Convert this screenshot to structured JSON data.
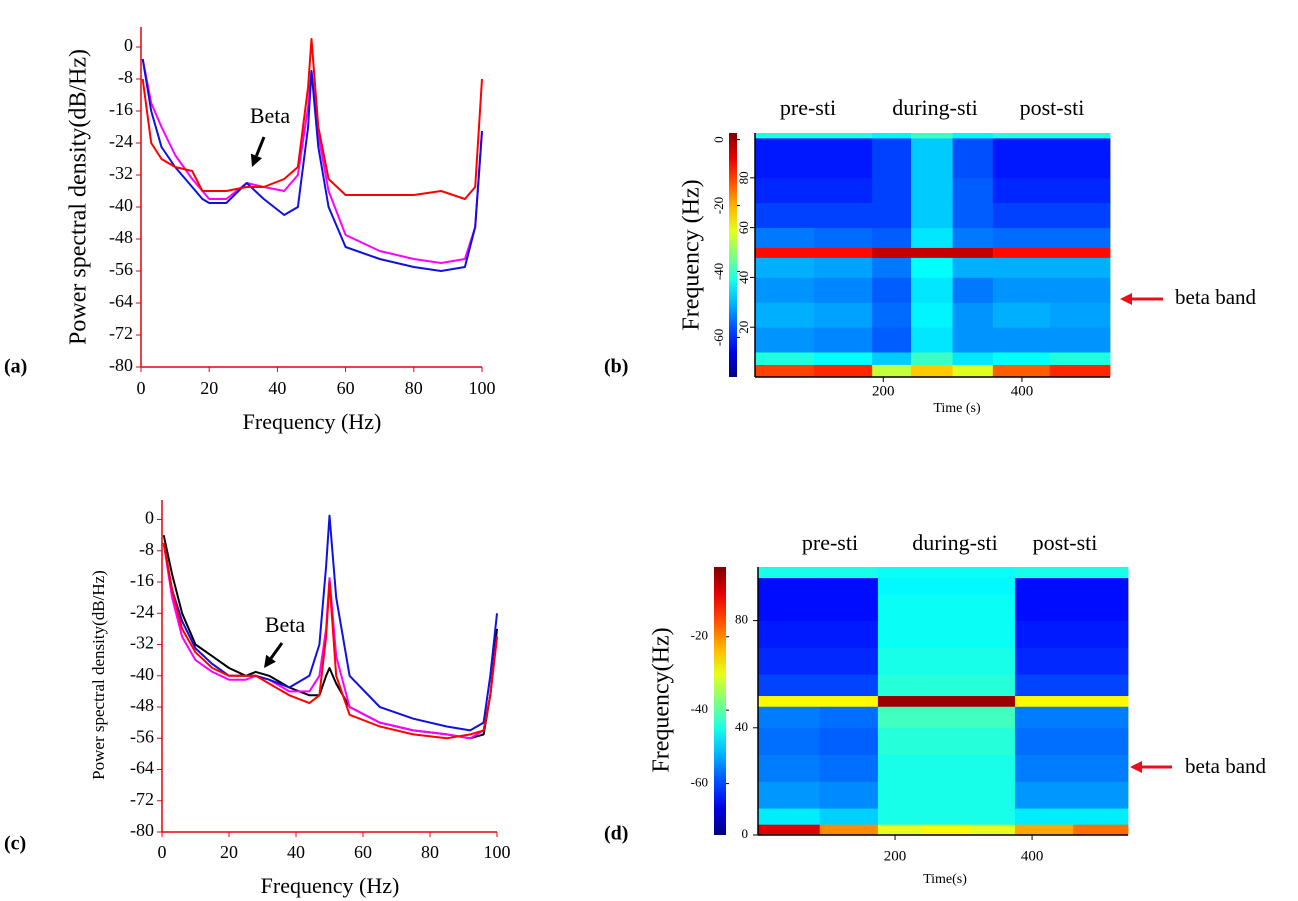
{
  "chart_data": [
    {
      "type": "line",
      "panel_label": "(a)",
      "xlabel": "Frequency (Hz)",
      "ylabel": "Power spectral density(dB/Hz)",
      "annotation": "Beta",
      "axis_color": "#e8000b",
      "xlim": [
        0,
        100
      ],
      "ylim": [
        -80,
        5
      ],
      "xticks": [
        0,
        20,
        40,
        60,
        80,
        100
      ],
      "yticks": [
        0,
        -8,
        -16,
        -24,
        -32,
        -40,
        -48,
        -56,
        -64,
        -72,
        -80
      ],
      "x": [
        0.5,
        3,
        6,
        10,
        15,
        18,
        20,
        25,
        31,
        36,
        42,
        46,
        49,
        50,
        52,
        55,
        60,
        70,
        80,
        88,
        95,
        98,
        100
      ],
      "series": [
        {
          "color": "#ff00ff",
          "values": [
            -3,
            -14,
            -20,
            -27,
            -33,
            -36,
            -38,
            -38,
            -34,
            -35,
            -36,
            -32,
            -15,
            -6,
            -22,
            -36,
            -47,
            -51,
            -53,
            -54,
            -53,
            -45,
            -21
          ]
        },
        {
          "color": "#1010e0",
          "values": [
            -3,
            -16,
            -25,
            -30,
            -35,
            -38,
            -39,
            -39,
            -34,
            -38,
            -42,
            -40,
            -20,
            -6,
            -25,
            -40,
            -50,
            -53,
            -55,
            -56,
            -55,
            -45,
            -21
          ]
        },
        {
          "color": "#ff0000",
          "values": [
            -8,
            -24,
            -28,
            -30,
            -31,
            -36,
            -36,
            -36,
            -35,
            -35,
            -33,
            -30,
            -10,
            2,
            -20,
            -33,
            -37,
            -37,
            -37,
            -36,
            -38,
            -35,
            -8
          ]
        }
      ]
    },
    {
      "type": "heatmap",
      "panel_label": "(b)",
      "xlabel": "Time (s)",
      "ylabel": "Frequency (Hz)",
      "annotation": "beta band",
      "segments": [
        "pre-sti",
        "during-sti",
        "post-sti"
      ],
      "colormap": "jet",
      "xlim": [
        15,
        527
      ],
      "ylim": [
        0,
        98
      ],
      "xticks": [
        200,
        400
      ],
      "yticks": [
        20,
        40,
        60,
        80
      ],
      "zlim": [
        -72,
        2
      ],
      "zticks": [
        0,
        -20,
        -40,
        -60
      ],
      "x": [
        15,
        100,
        184,
        240,
        300,
        358,
        440,
        527
      ],
      "y": [
        0,
        5,
        10,
        20,
        30,
        40,
        48,
        52,
        60,
        70,
        80,
        90,
        96,
        98
      ],
      "z": [
        [
          -12,
          -10,
          -30,
          -22,
          -28,
          -14,
          -10
        ],
        [
          -42,
          -44,
          -48,
          -40,
          -46,
          -44,
          -42
        ],
        [
          -52,
          -53,
          -56,
          -46,
          -52,
          -52,
          -52
        ],
        [
          -50,
          -51,
          -55,
          -45,
          -52,
          -50,
          -51
        ],
        [
          -52,
          -53,
          -56,
          -46,
          -54,
          -52,
          -52
        ],
        [
          -50,
          -51,
          -54,
          -44,
          -50,
          -50,
          -50
        ],
        [
          -8,
          -8,
          -3,
          -3,
          -3,
          -8,
          -8
        ],
        [
          -54,
          -55,
          -56,
          -46,
          -54,
          -55,
          -55
        ],
        [
          -58,
          -58,
          -58,
          -48,
          -56,
          -58,
          -58
        ],
        [
          -60,
          -60,
          -58,
          -48,
          -56,
          -60,
          -60
        ],
        [
          -61,
          -61,
          -58,
          -48,
          -57,
          -61,
          -61
        ],
        [
          -61,
          -61,
          -58,
          -48,
          -57,
          -61,
          -61
        ],
        [
          -42,
          -42,
          -45,
          -40,
          -45,
          -42,
          -42
        ]
      ]
    },
    {
      "type": "line",
      "panel_label": "(c)",
      "xlabel": "Frequency (Hz)",
      "ylabel": "Power spectral density(dB/Hz)",
      "annotation": "Beta",
      "axis_color": "#e8000b",
      "xlim": [
        0,
        100
      ],
      "ylim": [
        -80,
        5
      ],
      "xticks": [
        0,
        20,
        40,
        60,
        80,
        100
      ],
      "yticks": [
        0,
        -8,
        -16,
        -24,
        -32,
        -40,
        -48,
        -56,
        -64,
        -72,
        -80
      ],
      "x": [
        0.5,
        3,
        6,
        10,
        15,
        20,
        25,
        28,
        32,
        38,
        44,
        47,
        49,
        50,
        52,
        56,
        65,
        75,
        85,
        92,
        96,
        98,
        100
      ],
      "series": [
        {
          "color": "#000000",
          "values": [
            -4,
            -14,
            -24,
            -32,
            -35,
            -38,
            -40,
            -39,
            -40,
            -43,
            -45,
            -45,
            -40,
            -38,
            -42,
            -48,
            -52,
            -54,
            -55,
            -56,
            -55,
            -45,
            -28
          ]
        },
        {
          "color": "#ff00ff",
          "values": [
            -6,
            -20,
            -30,
            -36,
            -39,
            -41,
            -41,
            -40,
            -41,
            -44,
            -44,
            -40,
            -28,
            -15,
            -35,
            -48,
            -52,
            -54,
            -55,
            -56,
            -54,
            -45,
            -30
          ]
        },
        {
          "color": "#1010e0",
          "values": [
            -6,
            -18,
            -26,
            -33,
            -37,
            -40,
            -40,
            -40,
            -41,
            -43,
            -40,
            -32,
            -12,
            1,
            -20,
            -40,
            -48,
            -51,
            -53,
            -54,
            -52,
            -40,
            -24
          ]
        },
        {
          "color": "#ff0000",
          "values": [
            -6,
            -18,
            -28,
            -34,
            -38,
            -40,
            -40,
            -40,
            -42,
            -45,
            -47,
            -45,
            -30,
            -16,
            -40,
            -50,
            -53,
            -55,
            -56,
            -55,
            -54,
            -45,
            -30
          ]
        }
      ]
    },
    {
      "type": "heatmap",
      "panel_label": "(d)",
      "xlabel": "Time(s)",
      "ylabel": "Frequency(Hz)",
      "annotation": "beta band",
      "segments": [
        "pre-sti",
        "during-sti",
        "post-sti"
      ],
      "colormap": "jet",
      "xlim": [
        0,
        540
      ],
      "ylim": [
        0,
        100
      ],
      "xticks": [
        200,
        400
      ],
      "yticks": [
        0,
        40,
        80
      ],
      "zlim": [
        -74,
        -1
      ],
      "zticks": [
        -20,
        -40,
        -60
      ],
      "x": [
        0,
        90,
        175,
        240,
        310,
        375,
        460,
        540
      ],
      "y": [
        0,
        4,
        10,
        20,
        30,
        40,
        48,
        52,
        60,
        70,
        80,
        90,
        96,
        100
      ],
      "z": [
        [
          -8,
          -20,
          -30,
          -28,
          -30,
          -22,
          -18
        ],
        [
          -48,
          -50,
          -45,
          -45,
          -45,
          -48,
          -48
        ],
        [
          -54,
          -55,
          -45,
          -45,
          -45,
          -54,
          -54
        ],
        [
          -56,
          -57,
          -45,
          -45,
          -45,
          -56,
          -56
        ],
        [
          -57,
          -58,
          -44,
          -44,
          -44,
          -57,
          -57
        ],
        [
          -56,
          -57,
          -42,
          -42,
          -42,
          -56,
          -56
        ],
        [
          -28,
          -28,
          -3,
          -3,
          -3,
          -28,
          -28
        ],
        [
          -60,
          -60,
          -44,
          -44,
          -44,
          -60,
          -60
        ],
        [
          -62,
          -62,
          -45,
          -45,
          -45,
          -62,
          -62
        ],
        [
          -63,
          -63,
          -46,
          -46,
          -46,
          -63,
          -63
        ],
        [
          -64,
          -64,
          -46,
          -46,
          -46,
          -64,
          -64
        ],
        [
          -64,
          -64,
          -47,
          -47,
          -47,
          -64,
          -64
        ],
        [
          -45,
          -45,
          -46,
          -46,
          -46,
          -45,
          -45
        ]
      ]
    }
  ]
}
